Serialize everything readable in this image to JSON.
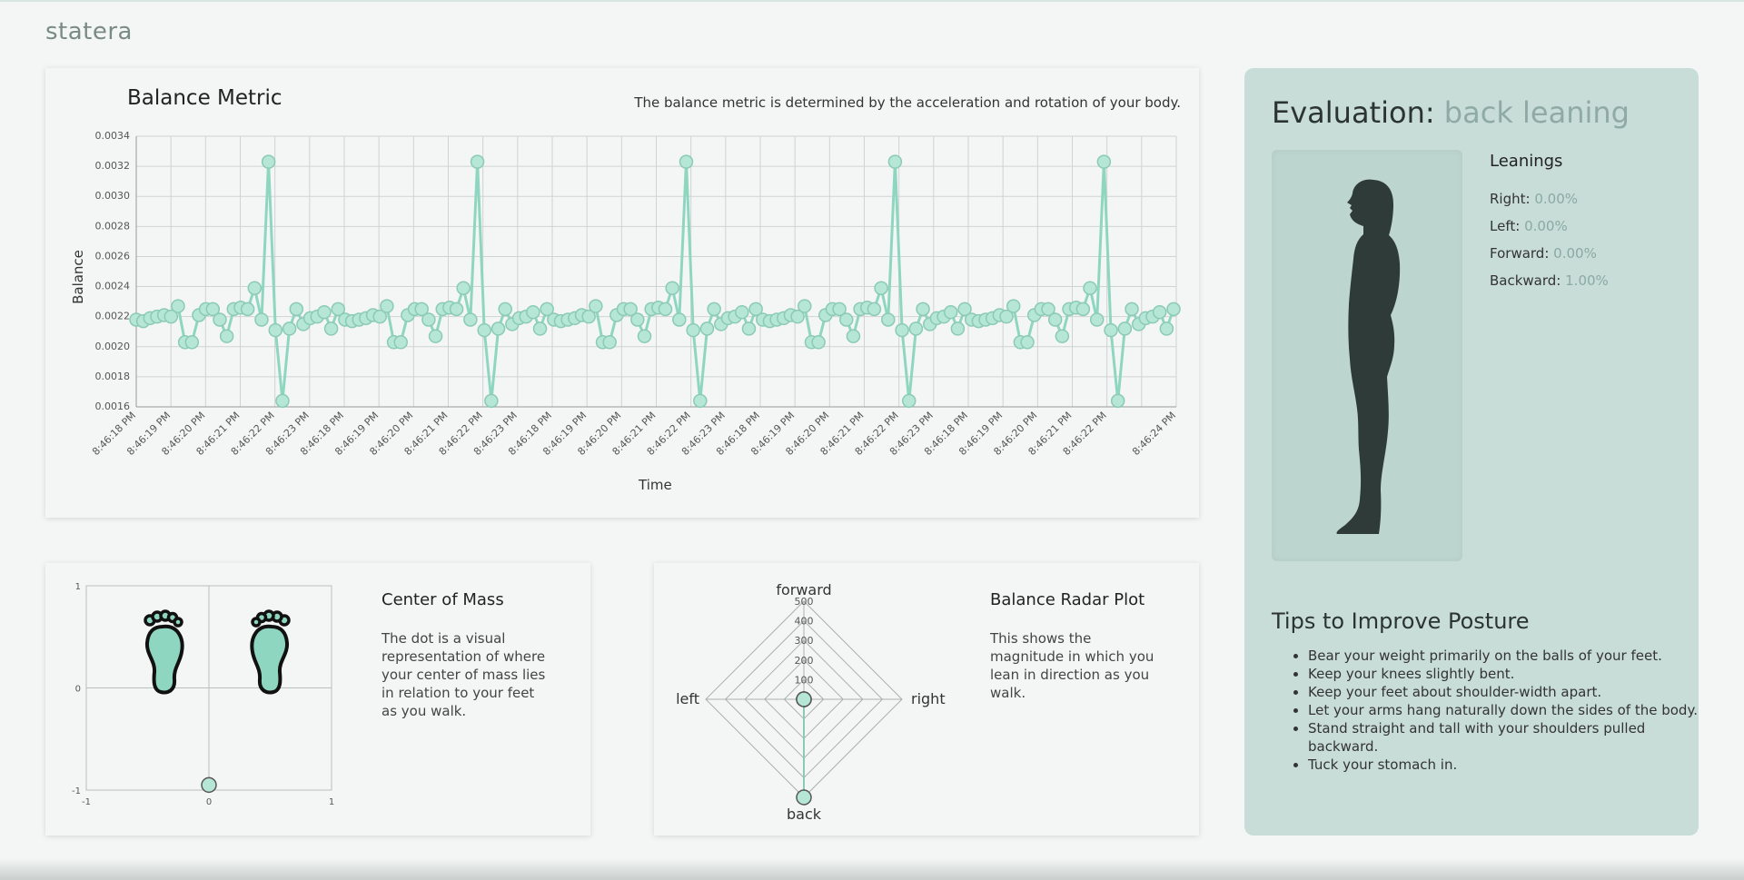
{
  "app": {
    "brand": "statera"
  },
  "balance": {
    "title": "Balance Metric",
    "description": "The balance metric is determined by the acceleration and rotation of your body."
  },
  "chart_data": [
    {
      "type": "line",
      "title": "Balance Metric",
      "xlabel": "Time",
      "ylabel": "Balance",
      "ylim": [
        0.0016,
        0.0034
      ],
      "y_ticks": [
        "0.0016",
        "0.0018",
        "0.0020",
        "0.0022",
        "0.0024",
        "0.0026",
        "0.0028",
        "0.0030",
        "0.0032",
        "0.0034"
      ],
      "x_tick_labels": [
        "8:46:18 PM",
        "8:46:19 PM",
        "8:46:20 PM",
        "8:46:21 PM",
        "8:46:22 PM",
        "8:46:23 PM",
        "8:46:18 PM",
        "8:46:19 PM",
        "8:46:20 PM",
        "8:46:21 PM",
        "8:46:22 PM",
        "8:46:23 PM",
        "8:46:18 PM",
        "8:46:19 PM",
        "8:46:20 PM",
        "8:46:21 PM",
        "8:46:22 PM",
        "8:46:23 PM",
        "8:46:18 PM",
        "8:46:19 PM",
        "8:46:20 PM",
        "8:46:21 PM",
        "8:46:22 PM",
        "8:46:23 PM",
        "8:46:18 PM",
        "8:46:19 PM",
        "8:46:20 PM",
        "8:46:21 PM",
        "8:46:22 PM",
        "8:46:24 PM"
      ],
      "grid": true,
      "color": "#8fd6c0",
      "series": [
        {
          "values": [
            0.00218,
            0.00217,
            0.00219,
            0.0022,
            0.00221,
            0.0022,
            0.00227,
            0.00203,
            0.00203,
            0.00221,
            0.00225,
            0.00225,
            0.00218,
            0.00207,
            0.00225,
            0.00226,
            0.00225,
            0.00239,
            0.00218,
            0.00323,
            0.00211,
            0.00164,
            0.00212,
            0.00225,
            0.00215,
            0.00219,
            0.0022,
            0.00223,
            0.00212,
            0.00225,
            0.00218,
            0.00217,
            0.00218,
            0.00219,
            0.00221,
            0.0022,
            0.00227,
            0.00203,
            0.00203,
            0.00221,
            0.00225,
            0.00225,
            0.00218,
            0.00207,
            0.00225,
            0.00226,
            0.00225,
            0.00239,
            0.00218,
            0.00323,
            0.00211,
            0.00164,
            0.00212,
            0.00225,
            0.00215,
            0.00219,
            0.0022,
            0.00223,
            0.00212,
            0.00225,
            0.00218,
            0.00217,
            0.00218,
            0.00219,
            0.00221,
            0.0022,
            0.00227,
            0.00203,
            0.00203,
            0.00221,
            0.00225,
            0.00225,
            0.00218,
            0.00207,
            0.00225,
            0.00226,
            0.00225,
            0.00239,
            0.00218,
            0.00323,
            0.00211,
            0.00164,
            0.00212,
            0.00225,
            0.00215,
            0.00219,
            0.0022,
            0.00223,
            0.00212,
            0.00225,
            0.00218,
            0.00217,
            0.00218,
            0.00219,
            0.00221,
            0.0022,
            0.00227,
            0.00203,
            0.00203,
            0.00221,
            0.00225,
            0.00225,
            0.00218,
            0.00207,
            0.00225,
            0.00226,
            0.00225,
            0.00239,
            0.00218,
            0.00323,
            0.00211,
            0.00164,
            0.00212,
            0.00225,
            0.00215,
            0.00219,
            0.0022,
            0.00223,
            0.00212,
            0.00225,
            0.00218,
            0.00217,
            0.00218,
            0.00219,
            0.00221,
            0.0022,
            0.00227,
            0.00203,
            0.00203,
            0.00221,
            0.00225,
            0.00225,
            0.00218,
            0.00207,
            0.00225,
            0.00226,
            0.00225,
            0.00239,
            0.00218,
            0.00323,
            0.00211,
            0.00164,
            0.00212,
            0.00225,
            0.00215,
            0.00219,
            0.0022,
            0.00223,
            0.00212,
            0.00225
          ]
        }
      ]
    },
    {
      "type": "scatter",
      "title": "",
      "xlim": [
        -1,
        1
      ],
      "ylim": [
        -1,
        1
      ],
      "x_ticks": [
        "-1",
        "0",
        "1"
      ],
      "y_ticks": [
        "1",
        "0",
        "-1"
      ],
      "point": {
        "x": 0,
        "y": -0.95
      },
      "color": "#8fd6c0"
    },
    {
      "type": "radar",
      "axes": [
        "forward",
        "right",
        "back",
        "left"
      ],
      "r_ticks": [
        "100",
        "200",
        "300",
        "400",
        "500"
      ],
      "r_max": 500,
      "values": {
        "forward": 0,
        "right": 0,
        "back": 500,
        "left": 0
      },
      "color": "#8fd6c0"
    }
  ],
  "com": {
    "title": "Center of Mass",
    "description": "The dot is a visual representation of where your center of mass lies in relation to your feet as you walk."
  },
  "radar": {
    "title": "Balance Radar Plot",
    "description": "This shows the magnitude in which you lean in direction as you walk."
  },
  "evaluation": {
    "label": "Evaluation:",
    "value": "back leaning",
    "leanings_title": "Leanings",
    "leanings": [
      {
        "label": "Right:",
        "value": "0.00%"
      },
      {
        "label": "Left:",
        "value": "0.00%"
      },
      {
        "label": "Forward:",
        "value": "0.00%"
      },
      {
        "label": "Backward:",
        "value": "1.00%"
      }
    ],
    "tips_title": "Tips to Improve Posture",
    "tips": [
      "Bear your weight primarily on the balls of your feet.",
      "Keep your knees slightly bent.",
      "Keep your feet about shoulder-width apart.",
      "Let your arms hang naturally down the sides of the body.",
      "Stand straight and tall with your shoulders pulled backward.",
      "Tuck your stomach in."
    ]
  },
  "icons": {
    "left_foot": "left-footprint-icon",
    "right_foot": "right-footprint-icon",
    "figure": "side-profile-silhouette-icon"
  },
  "colors": {
    "accent": "#8fd6c0",
    "panel": "#c8ddd8",
    "figure": "#2f3b38",
    "background": "#f3f6f5"
  }
}
